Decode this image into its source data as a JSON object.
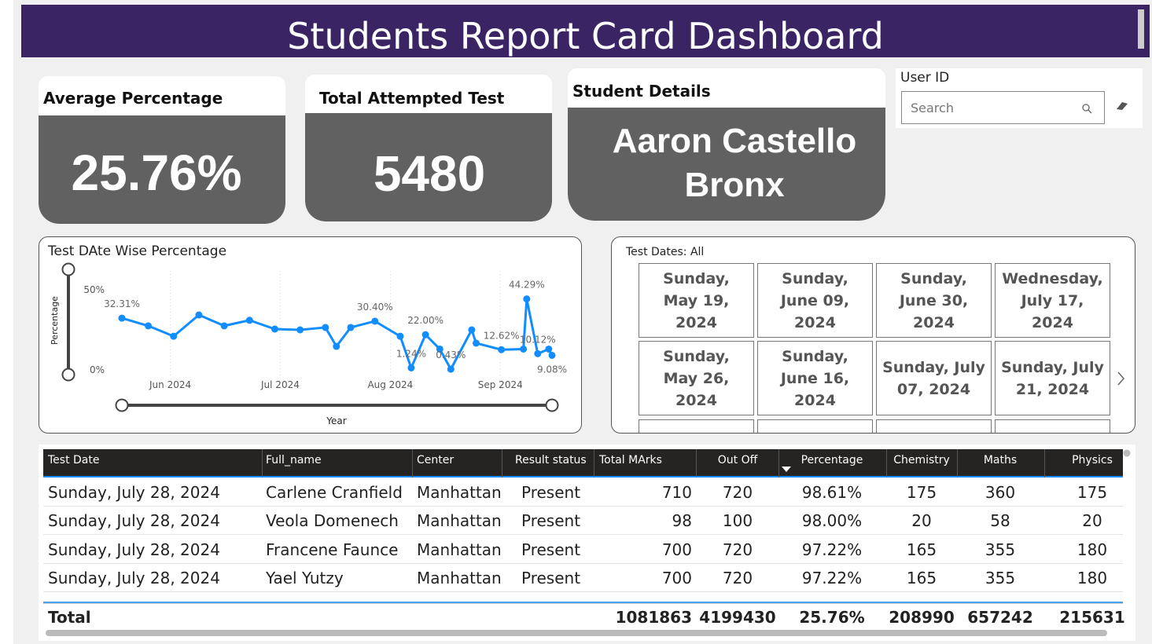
{
  "header": {
    "title": "Students Report Card Dashboard"
  },
  "cards": [
    {
      "title": "Average Percentage",
      "value": "25.76%"
    },
    {
      "title": "Total Attempted Test",
      "value": "5480"
    },
    {
      "title": "Student Details",
      "lines": [
        "Aaron Castello",
        "Bronx"
      ]
    }
  ],
  "user_filter": {
    "label": "User ID",
    "placeholder": "Search"
  },
  "chart_data": {
    "type": "line",
    "title": "Test DAte Wise Percentage",
    "x_label": "Year",
    "y_label": "Percentage",
    "x": [
      5.56,
      5.8,
      6.03,
      6.26,
      6.49,
      6.72,
      6.95,
      7.18,
      7.41,
      7.51,
      7.64,
      7.86,
      8.09,
      8.19,
      8.32,
      8.45,
      8.55,
      8.74,
      8.78,
      9.01,
      9.21,
      9.24,
      9.34,
      9.44,
      9.47
    ],
    "values": [
      32.31,
      27.5,
      21,
      34.3,
      27.5,
      31,
      25.5,
      25,
      26.5,
      14.7,
      26.5,
      30.4,
      21,
      1.24,
      22.0,
      13,
      0.43,
      25,
      16.7,
      12.62,
      13,
      44.29,
      10.12,
      13,
      9.08
    ],
    "value_labels": [
      "32.31%",
      null,
      null,
      null,
      null,
      null,
      null,
      null,
      null,
      null,
      null,
      "30.40%",
      null,
      "1.24%",
      "22.00%",
      null,
      "0.43%",
      null,
      null,
      "12.62%",
      null,
      "44.29%",
      "10.12%",
      null,
      "9.08%"
    ],
    "color": "#118dff",
    "xlim": [
      5.56,
      9.47
    ],
    "xticks": [
      {
        "value": 6,
        "label": "Jun 2024"
      },
      {
        "value": 7,
        "label": "Jul 2024"
      },
      {
        "value": 8,
        "label": "Aug 2024"
      },
      {
        "value": 9,
        "label": "Sep 2024"
      }
    ],
    "ylim": [
      0,
      50
    ],
    "yticks": [
      {
        "value": 0,
        "label": "0%"
      },
      {
        "value": 50,
        "label": "50%"
      }
    ],
    "grid": true
  },
  "date_slicer": {
    "title": "Test Dates: All",
    "items": [
      "Sunday, May 19, 2024",
      "Sunday, June 09, 2024",
      "Sunday, June 30, 2024",
      "Wednesday, July 17, 2024",
      "Sunday, May 26, 2024",
      "Sunday, June 16, 2024",
      "Sunday, July 07, 2024",
      "Sunday, July 21, 2024"
    ]
  },
  "table": {
    "columns": [
      "Test Date",
      "Full_name",
      "Center",
      "Result status",
      "Total MArks",
      "Out Off",
      "Percentage",
      "Chemistry",
      "Maths",
      "Physics"
    ],
    "rows": [
      [
        "Sunday, July 28, 2024",
        "Carlene Cranfield",
        "Manhattan",
        "Present",
        "710",
        "720",
        "98.61%",
        "175",
        "360",
        "175"
      ],
      [
        "Sunday, July 28, 2024",
        "Veola Domenech",
        "Manhattan",
        "Present",
        "98",
        "100",
        "98.00%",
        "20",
        "58",
        "20"
      ],
      [
        "Sunday, July 28, 2024",
        "Francene Faunce",
        "Manhattan",
        "Present",
        "700",
        "720",
        "97.22%",
        "165",
        "355",
        "180"
      ],
      [
        "Sunday, July 28, 2024",
        "Yael Yutzy",
        "Manhattan",
        "Present",
        "700",
        "720",
        "97.22%",
        "165",
        "355",
        "180"
      ]
    ],
    "total": [
      "Total",
      null,
      null,
      null,
      "1081863",
      "4199430",
      "25.76%",
      "208990",
      "657242",
      "215631"
    ]
  }
}
